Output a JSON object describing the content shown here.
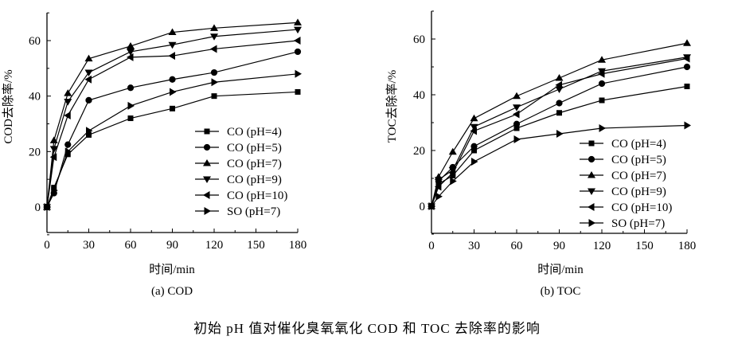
{
  "chart_data": [
    {
      "type": "line",
      "panel_label": "(a) COD",
      "xlabel": "时间/min",
      "ylabel": "COD去除率/%",
      "xlim": [
        0,
        180
      ],
      "ylim": [
        -10,
        70
      ],
      "xticks": [
        0,
        30,
        60,
        90,
        120,
        150,
        180
      ],
      "yticks": [
        0,
        20,
        40,
        60
      ],
      "grid": false,
      "legend": "bottom-right",
      "x": [
        0,
        5,
        15,
        30,
        60,
        90,
        120,
        180
      ],
      "series": [
        {
          "name": "CO (pH=4)",
          "marker": "square",
          "values": [
            0,
            7,
            19,
            26,
            32,
            35.5,
            40,
            41.5
          ]
        },
        {
          "name": "CO (pH=5)",
          "marker": "circle",
          "values": [
            0,
            5,
            22.5,
            38.5,
            43,
            46,
            48.5,
            56
          ]
        },
        {
          "name": "CO (pH=7)",
          "marker": "triangle-up",
          "values": [
            0,
            24,
            41,
            53.5,
            58,
            63,
            64.5,
            66.5
          ]
        },
        {
          "name": "CO (pH=9)",
          "marker": "triangle-down",
          "values": [
            0,
            21,
            38,
            48.5,
            56,
            58.5,
            61.5,
            64
          ]
        },
        {
          "name": "CO (pH=10)",
          "marker": "triangle-left",
          "values": [
            0,
            18,
            33,
            46,
            54,
            54.5,
            57,
            60
          ]
        },
        {
          "name": "SO (pH=7)",
          "marker": "triangle-right",
          "values": [
            0,
            6,
            20,
            27.5,
            36.5,
            41.5,
            45,
            48
          ]
        }
      ]
    },
    {
      "type": "line",
      "panel_label": "(b) TOC",
      "xlabel": "时间/min",
      "ylabel": "TOC去除率/%",
      "xlim": [
        0,
        180
      ],
      "ylim": [
        -10,
        70
      ],
      "xticks": [
        0,
        30,
        60,
        90,
        120,
        150,
        180
      ],
      "yticks": [
        0,
        20,
        40,
        60
      ],
      "grid": false,
      "legend": "bottom-right",
      "x": [
        0,
        5,
        15,
        30,
        60,
        90,
        120,
        180
      ],
      "series": [
        {
          "name": "CO (pH=4)",
          "marker": "square",
          "values": [
            0,
            8,
            11,
            20,
            28,
            33.5,
            38,
            43
          ]
        },
        {
          "name": "CO (pH=5)",
          "marker": "circle",
          "values": [
            0,
            9,
            14,
            21.5,
            29.5,
            37,
            44,
            50
          ]
        },
        {
          "name": "CO (pH=7)",
          "marker": "triangle-up",
          "values": [
            0,
            10.5,
            19.5,
            31.5,
            39.5,
            46,
            52.5,
            58.5
          ]
        },
        {
          "name": "CO (pH=9)",
          "marker": "triangle-down",
          "values": [
            0,
            9.5,
            13,
            28.5,
            35.5,
            42,
            48.5,
            53.5
          ]
        },
        {
          "name": "CO (pH=10)",
          "marker": "triangle-left",
          "values": [
            0,
            7,
            12,
            27,
            33,
            43.5,
            47.5,
            53
          ]
        },
        {
          "name": "SO (pH=7)",
          "marker": "triangle-right",
          "values": [
            0,
            3.5,
            9,
            16,
            24,
            26,
            28,
            29
          ]
        }
      ]
    }
  ],
  "caption": "初始 pH 值对催化臭氧氧化 COD 和 TOC 去除率的影响"
}
